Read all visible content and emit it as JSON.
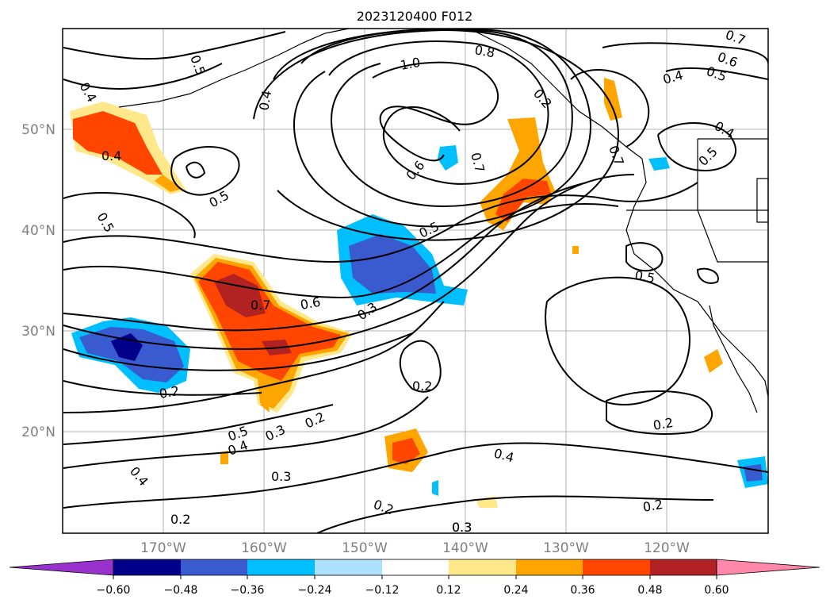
{
  "title": "2023120400 F012",
  "latitude_labels": [
    "20°N",
    "30°N",
    "40°N",
    "50°N"
  ],
  "longitude_labels": [
    "170°W",
    "160°W",
    "150°W",
    "140°W",
    "130°W",
    "120°W"
  ],
  "colorbar": {
    "tick_labels": [
      "−0.60",
      "−0.48",
      "−0.36",
      "−0.24",
      "−0.12",
      "0.12",
      "0.24",
      "0.36",
      "0.48",
      "0.60"
    ],
    "colors": [
      "#9932CC",
      "#00008B",
      "#3A5BCF",
      "#00BFFF",
      "#ADE0FA",
      "#FFFFFF",
      "#FFE88A",
      "#FFA500",
      "#FF4500",
      "#B22222",
      "#FF88AA"
    ]
  },
  "contour_labels": [
    "0.4",
    "0.5",
    "0.4",
    "0.4",
    "0.5",
    "0.5",
    "1.0",
    "0.8",
    "0.7",
    "0.6",
    "0.7",
    "0.6",
    "0.5",
    "0.4",
    "0.4",
    "0.5",
    "0.5",
    "0.7",
    "0.6",
    "0.5",
    "0.3",
    "0.2",
    "0.2",
    "0.5",
    "0.4",
    "0.3",
    "0.2",
    "0.4",
    "0.3",
    "0.2",
    "0.2",
    "0.4",
    "0.2",
    "0.3",
    "0.2",
    "0.2",
    "0.7",
    "0.3"
  ]
}
